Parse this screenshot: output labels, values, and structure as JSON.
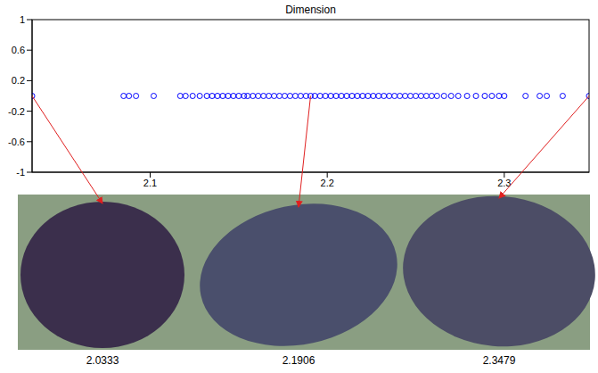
{
  "chart_data": {
    "type": "scatter",
    "title": "Dimension",
    "color": "#0000ff",
    "marker": "circle",
    "grid": false,
    "xlim": [
      2.0333,
      2.3479
    ],
    "xticks": [
      2.1,
      2.2,
      2.3
    ],
    "ylim": [
      -1,
      1
    ],
    "yticks": [
      -1,
      -0.6,
      -0.2,
      0.2,
      0.6,
      1
    ],
    "x": [
      2.0333,
      2.085,
      2.088,
      2.092,
      2.102,
      2.117,
      2.12,
      2.124,
      2.128,
      2.132,
      2.135,
      2.138,
      2.141,
      2.144,
      2.147,
      2.15,
      2.153,
      2.155,
      2.158,
      2.161,
      2.164,
      2.167,
      2.17,
      2.173,
      2.176,
      2.179,
      2.182,
      2.185,
      2.188,
      2.1906,
      2.193,
      2.196,
      2.199,
      2.202,
      2.205,
      2.208,
      2.211,
      2.214,
      2.217,
      2.22,
      2.223,
      2.226,
      2.229,
      2.232,
      2.235,
      2.238,
      2.241,
      2.244,
      2.247,
      2.25,
      2.253,
      2.256,
      2.259,
      2.262,
      2.266,
      2.27,
      2.274,
      2.279,
      2.284,
      2.289,
      2.293,
      2.297,
      2.3,
      2.312,
      2.32,
      2.324,
      2.333,
      2.3479
    ],
    "values": [
      0,
      0,
      0,
      0,
      0,
      0,
      0,
      0,
      0,
      0,
      0,
      0,
      0,
      0,
      0,
      0,
      0,
      0,
      0,
      0,
      0,
      0,
      0,
      0,
      0,
      0,
      0,
      0,
      0,
      0,
      0,
      0,
      0,
      0,
      0,
      0,
      0,
      0,
      0,
      0,
      0,
      0,
      0,
      0,
      0,
      0,
      0,
      0,
      0,
      0,
      0,
      0,
      0,
      0,
      0,
      0,
      0,
      0,
      0,
      0,
      0,
      0,
      0,
      0,
      0,
      0,
      0,
      0
    ],
    "annotations": [
      2.0333,
      2.1906,
      2.3479
    ]
  }
}
